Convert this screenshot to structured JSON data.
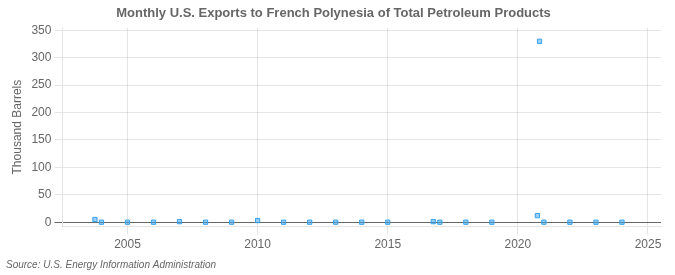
{
  "chart_data": {
    "type": "scatter",
    "title": "Monthly U.S. Exports to French Polynesia of Total Petroleum Products",
    "ylabel": "Thousand Barrels",
    "source": "Source: U.S. Energy Information Administration",
    "x": [
      2003.75,
      2004.0,
      2005.0,
      2006.0,
      2007.0,
      2008.0,
      2009.0,
      2010.0,
      2011.0,
      2012.0,
      2013.0,
      2014.0,
      2015.0,
      2016.75,
      2017.0,
      2018.0,
      2019.0,
      2020.75,
      2020.833,
      2021.0,
      2022.0,
      2023.0,
      2024.0
    ],
    "values": [
      5,
      0,
      0,
      0,
      1,
      0,
      0,
      3,
      0,
      0,
      0,
      0,
      0,
      1,
      0,
      0,
      0,
      12,
      330,
      0,
      0,
      0,
      0
    ],
    "xlim": [
      2002.5,
      2025.5
    ],
    "ylim": [
      -8,
      355
    ],
    "xticks": [
      2005,
      2010,
      2015,
      2020,
      2025
    ],
    "yticks": [
      0,
      50,
      100,
      150,
      200,
      250,
      300,
      350
    ],
    "grid": true,
    "marker": "square"
  }
}
